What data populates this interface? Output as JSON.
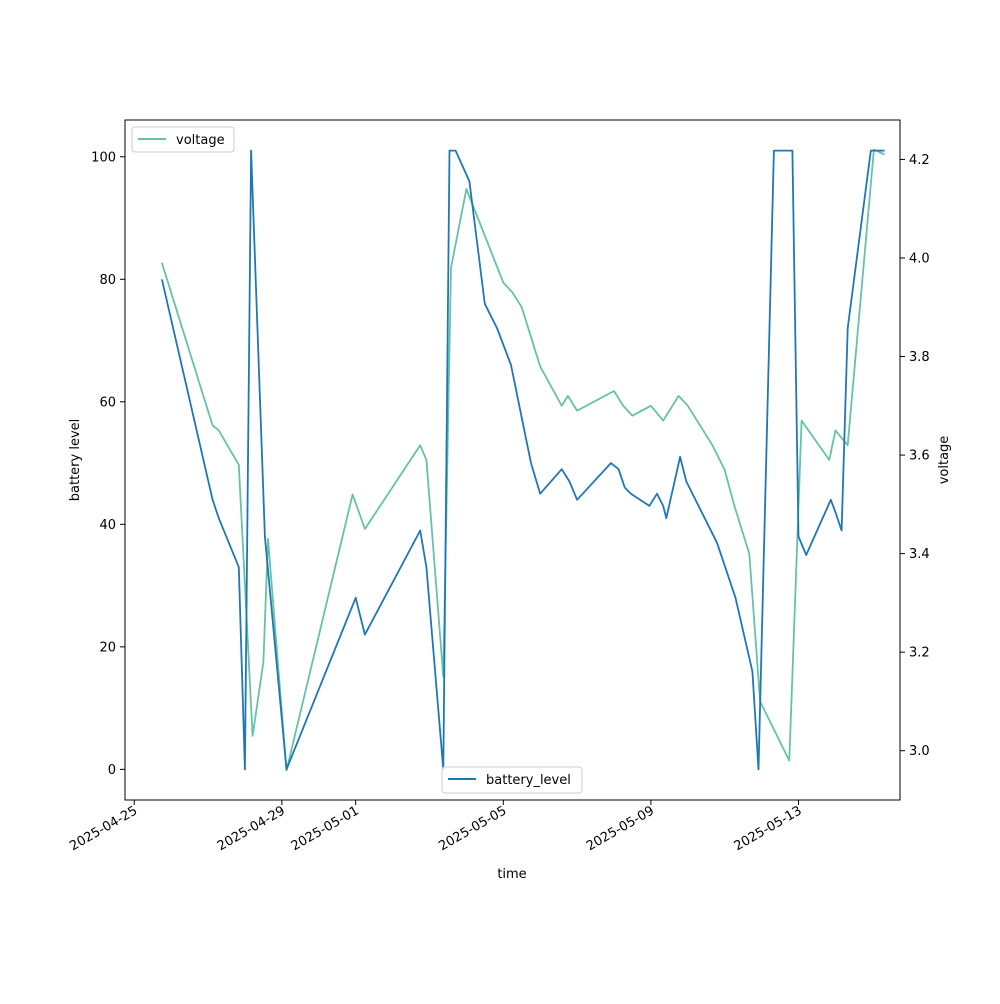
{
  "chart_data": {
    "type": "line",
    "xlabel": "time",
    "ylabel_left": "battery level",
    "ylabel_right": "voltage",
    "x_range": [
      "2025-04-24T18:00",
      "2025-05-15T18:00"
    ],
    "ylim_left": [
      -5,
      106
    ],
    "ylim_right": [
      2.9,
      4.28
    ],
    "x_ticks": [
      "2025-04-25",
      "2025-04-29",
      "2025-05-01",
      "2025-05-05",
      "2025-05-09",
      "2025-05-13"
    ],
    "y_ticks_left": [
      "0",
      "20",
      "40",
      "60",
      "80",
      "100"
    ],
    "y_ticks_right": [
      "3.0",
      "3.2",
      "3.4",
      "3.6",
      "3.8",
      "4.0",
      "4.2"
    ],
    "grid": false,
    "colors": {
      "battery_level": "#1f77b4",
      "voltage": "#66c2a5"
    },
    "legends": {
      "voltage": {
        "label": "voltage",
        "placement": "upper-left"
      },
      "battery_level": {
        "label": "battery_level",
        "placement": "lower-center"
      }
    },
    "series": [
      {
        "name": "battery_level",
        "axis": "left",
        "x": [
          "2025-04-25T18:00",
          "2025-04-27T03:00",
          "2025-04-27T07:00",
          "2025-04-27T20:00",
          "2025-04-28T00:00",
          "2025-04-28T04:00",
          "2025-04-28T13:00",
          "2025-04-29T03:00",
          "2025-05-01T00:00",
          "2025-05-01T06:00",
          "2025-05-02T18:00",
          "2025-05-02T22:00",
          "2025-05-03T09:00",
          "2025-05-03T13:00",
          "2025-05-03T17:00",
          "2025-05-04T02:00",
          "2025-05-04T12:00",
          "2025-05-04T20:00",
          "2025-05-05T05:00",
          "2025-05-05T18:00",
          "2025-05-06T00:00",
          "2025-05-06T14:00",
          "2025-05-06T19:00",
          "2025-05-07T00:00",
          "2025-05-07T22:00",
          "2025-05-08T03:00",
          "2025-05-08T07:00",
          "2025-05-08T11:00",
          "2025-05-08T23:00",
          "2025-05-09T04:00",
          "2025-05-09T08:00",
          "2025-05-09T10:00",
          "2025-05-09T19:00",
          "2025-05-09T23:00",
          "2025-05-10T19:00",
          "2025-05-11T07:00",
          "2025-05-11T18:00",
          "2025-05-11T22:00",
          "2025-05-12T08:00",
          "2025-05-12T20:00",
          "2025-05-13T00:00",
          "2025-05-13T05:00",
          "2025-05-13T21:00",
          "2025-05-14T00:00",
          "2025-05-14T04:00",
          "2025-05-14T08:00",
          "2025-05-14T23:00",
          "2025-05-15T08:00"
        ],
        "values": [
          80,
          44,
          41,
          33,
          0,
          101,
          38,
          0,
          28,
          22,
          39,
          33,
          0,
          101,
          101,
          96,
          76,
          72,
          66,
          50,
          45,
          49,
          47,
          44,
          50,
          49,
          46,
          45,
          43,
          45,
          43,
          41,
          51,
          47,
          37,
          28,
          16,
          0,
          101,
          101,
          38,
          35,
          44,
          42,
          39,
          72,
          101,
          101
        ]
      },
      {
        "name": "voltage",
        "axis": "right",
        "x": [
          "2025-04-25T18:00",
          "2025-04-27T03:00",
          "2025-04-27T07:00",
          "2025-04-27T20:00",
          "2025-04-28T05:00",
          "2025-04-28T12:00",
          "2025-04-28T15:00",
          "2025-04-29T03:00",
          "2025-04-30T22:00",
          "2025-05-01T06:00",
          "2025-05-02T18:00",
          "2025-05-02T22:00",
          "2025-05-03T09:00",
          "2025-05-03T14:00",
          "2025-05-04T00:00",
          "2025-05-05T00:00",
          "2025-05-05T06:00",
          "2025-05-05T12:00",
          "2025-05-05T20:00",
          "2025-05-06T00:00",
          "2025-05-06T14:00",
          "2025-05-06T18:00",
          "2025-05-07T00:00",
          "2025-05-08T00:00",
          "2025-05-08T06:00",
          "2025-05-08T12:00",
          "2025-05-09T00:00",
          "2025-05-09T08:00",
          "2025-05-09T18:00",
          "2025-05-10T00:00",
          "2025-05-10T16:00",
          "2025-05-11T00:00",
          "2025-05-11T06:00",
          "2025-05-11T16:00",
          "2025-05-11T23:00",
          "2025-05-12T18:00",
          "2025-05-13T02:00",
          "2025-05-13T20:00",
          "2025-05-14T00:00",
          "2025-05-14T08:00",
          "2025-05-15T01:00",
          "2025-05-15T08:00"
        ],
        "values": [
          3.99,
          3.66,
          3.65,
          3.58,
          3.03,
          3.18,
          3.43,
          2.96,
          3.52,
          3.45,
          3.62,
          3.59,
          3.15,
          3.98,
          4.14,
          3.95,
          3.93,
          3.9,
          3.82,
          3.78,
          3.7,
          3.72,
          3.69,
          3.73,
          3.7,
          3.68,
          3.7,
          3.67,
          3.72,
          3.7,
          3.62,
          3.57,
          3.5,
          3.4,
          3.1,
          2.98,
          3.67,
          3.59,
          3.65,
          3.62,
          4.22,
          4.21
        ]
      }
    ]
  }
}
